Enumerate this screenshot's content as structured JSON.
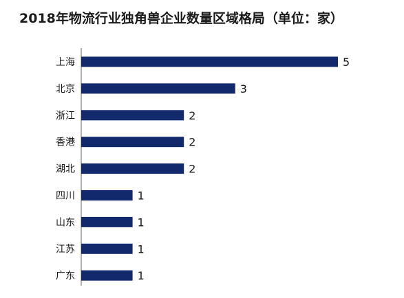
{
  "chart_data": {
    "type": "bar",
    "orientation": "horizontal",
    "title": "2018年物流行业独角兽企业数量区域格局（单位：家）",
    "xlabel": "",
    "ylabel": "",
    "categories": [
      "上海",
      "北京",
      "浙江",
      "香港",
      "湖北",
      "四川",
      "山东",
      "江苏",
      "广东"
    ],
    "values": [
      5,
      3,
      2,
      2,
      2,
      1,
      1,
      1,
      1
    ],
    "xlim": [
      0,
      5
    ],
    "grid": false,
    "legend": "none",
    "data_labels": true,
    "colors": {
      "bar": "#12296b",
      "axis": "#666666",
      "text": "#1a1a1a"
    }
  }
}
